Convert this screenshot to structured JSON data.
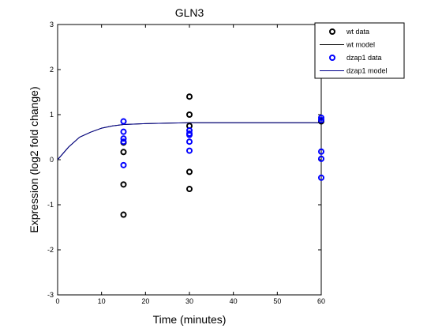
{
  "chart_data": {
    "type": "scatter",
    "title": "GLN3",
    "xlabel": "Time (minutes)",
    "ylabel": "Expression (log2 fold change)",
    "xlim": [
      0,
      60
    ],
    "ylim": [
      -3,
      3
    ],
    "xticks": [
      0,
      10,
      20,
      30,
      40,
      50,
      60
    ],
    "yticks": [
      -3,
      -2,
      -1,
      0,
      1,
      2,
      3
    ],
    "grid": false,
    "legend_position": "top-right",
    "series": [
      {
        "name": "wt data",
        "kind": "points",
        "color": "#000000",
        "points": [
          [
            15,
            0.38
          ],
          [
            15,
            0.17
          ],
          [
            15,
            -0.55
          ],
          [
            15,
            -1.22
          ],
          [
            30,
            1.4
          ],
          [
            30,
            1.0
          ],
          [
            30,
            0.75
          ],
          [
            30,
            -0.27
          ],
          [
            30,
            -0.65
          ],
          [
            60,
            0.85
          ]
        ]
      },
      {
        "name": "wt model",
        "kind": "line",
        "color": "#000000",
        "points": [
          [
            0,
            0.0
          ],
          [
            2.5,
            0.28
          ],
          [
            5,
            0.5
          ],
          [
            7.5,
            0.61
          ],
          [
            10,
            0.7
          ],
          [
            12.5,
            0.75
          ],
          [
            15,
            0.78
          ],
          [
            20,
            0.8
          ],
          [
            25,
            0.81
          ],
          [
            30,
            0.82
          ],
          [
            40,
            0.82
          ],
          [
            50,
            0.82
          ],
          [
            60,
            0.82
          ]
        ]
      },
      {
        "name": "dzap1 data",
        "kind": "points",
        "color": "#0000ff",
        "points": [
          [
            15,
            0.85
          ],
          [
            15,
            0.62
          ],
          [
            15,
            0.47
          ],
          [
            15,
            0.4
          ],
          [
            15,
            -0.12
          ],
          [
            30,
            0.65
          ],
          [
            30,
            0.58
          ],
          [
            30,
            0.55
          ],
          [
            30,
            0.4
          ],
          [
            30,
            0.2
          ],
          [
            60,
            0.93
          ],
          [
            60,
            0.88
          ],
          [
            60,
            0.18
          ],
          [
            60,
            0.02
          ],
          [
            60,
            -0.4
          ]
        ]
      },
      {
        "name": "dzap1 model",
        "kind": "line",
        "color": "#00008b",
        "points": [
          [
            0,
            0.0
          ],
          [
            2.5,
            0.28
          ],
          [
            5,
            0.5
          ],
          [
            7.5,
            0.61
          ],
          [
            10,
            0.7
          ],
          [
            12.5,
            0.75
          ],
          [
            15,
            0.78
          ],
          [
            20,
            0.8
          ],
          [
            25,
            0.81
          ],
          [
            30,
            0.82
          ],
          [
            40,
            0.82
          ],
          [
            50,
            0.82
          ],
          [
            60,
            0.82
          ]
        ]
      }
    ]
  }
}
